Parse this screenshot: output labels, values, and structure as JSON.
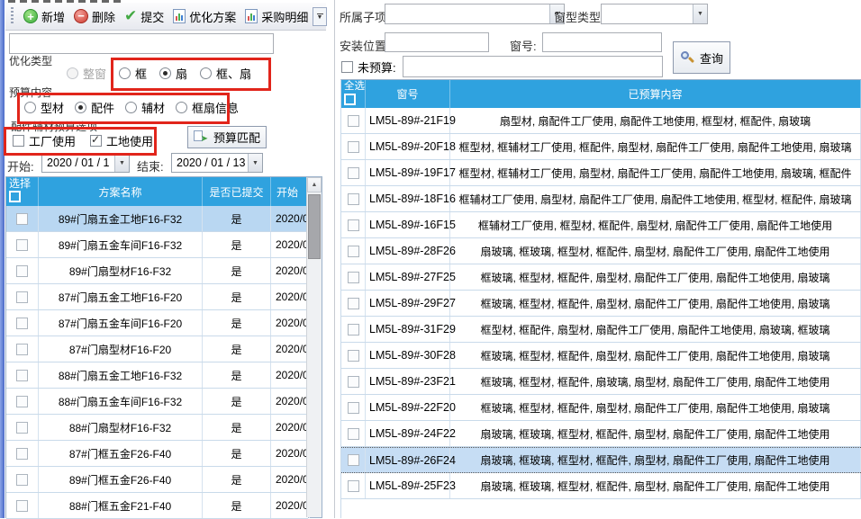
{
  "colors": {
    "header_blue": "#2FA2DF",
    "row_highlight": "#B9D7F2",
    "row_selected": "#C6DDF4",
    "annotation_red": "#E1251B",
    "window_edge_blue": "#4A6AC8"
  },
  "left_panel": {
    "toolbar": {
      "items": [
        {
          "label": "新增",
          "icon": "add-icon"
        },
        {
          "label": "删除",
          "icon": "delete-icon"
        },
        {
          "label": "提交",
          "icon": "check-icon"
        },
        {
          "label": "优化方案",
          "icon": "report-icon"
        },
        {
          "label": "采购明细",
          "icon": "report-icon",
          "has_dropdown": true
        }
      ]
    },
    "filter_input": {
      "value": "",
      "placeholder": ""
    },
    "optimize_type": {
      "label": "优化类型",
      "options": [
        {
          "label": "整窗",
          "state": "disabled"
        },
        {
          "label": "框",
          "state": "off"
        },
        {
          "label": "扇",
          "state": "on"
        },
        {
          "label": "框、扇",
          "state": "off"
        }
      ]
    },
    "budget_content": {
      "label": "预算内容",
      "options": [
        {
          "label": "型材",
          "state": "off"
        },
        {
          "label": "配件",
          "state": "on"
        },
        {
          "label": "辅材",
          "state": "off"
        },
        {
          "label": "框扇信息",
          "state": "off"
        }
      ]
    },
    "accessory_group": {
      "label": "配件辅材预算选项",
      "checkboxes": [
        {
          "label": "工厂使用",
          "state": "off"
        },
        {
          "label": "工地使用",
          "state": "on"
        }
      ]
    },
    "match_button": {
      "label": "预算匹配"
    },
    "dates": {
      "start_label": "开始:",
      "start_value": "2020 / 01 / 1",
      "end_label": "结束:",
      "end_value": "2020 / 01 / 13"
    },
    "table": {
      "headers": {
        "select": "选择",
        "name": "方案名称",
        "submitted": "是否已提交",
        "start": "开始"
      },
      "rows": [
        {
          "name": "89#门扇五金工地F16-F32",
          "submitted": "是",
          "start": "2020/0",
          "highlighted": true
        },
        {
          "name": "89#门扇五金车间F16-F32",
          "submitted": "是",
          "start": "2020/0"
        },
        {
          "name": "89#门扇型材F16-F32",
          "submitted": "是",
          "start": "2020/0"
        },
        {
          "name": "87#门扇五金工地F16-F20",
          "submitted": "是",
          "start": "2020/0"
        },
        {
          "name": "87#门扇五金车间F16-F20",
          "submitted": "是",
          "start": "2020/0"
        },
        {
          "name": "87#门扇型材F16-F20",
          "submitted": "是",
          "start": "2020/0"
        },
        {
          "name": "88#门扇五金工地F16-F32",
          "submitted": "是",
          "start": "2020/0"
        },
        {
          "name": "88#门扇五金车间F16-F32",
          "submitted": "是",
          "start": "2020/0"
        },
        {
          "name": "88#门扇型材F16-F32",
          "submitted": "是",
          "start": "2020/0"
        },
        {
          "name": "87#门框五金F26-F40",
          "submitted": "是",
          "start": "2020/0"
        },
        {
          "name": "89#门框五金F26-F40",
          "submitted": "是",
          "start": "2020/0"
        },
        {
          "name": "88#门框五金F21-F40",
          "submitted": "是",
          "start": "2020/0"
        }
      ]
    }
  },
  "right_panel": {
    "filters": {
      "sub_item_label": "所属子项:",
      "sub_item_value": "",
      "window_type_label": "窗型类型:",
      "window_type_value": "",
      "install_pos_label": "安装位置:",
      "install_pos_value": "",
      "window_no_label": "窗号:",
      "window_no_value": "",
      "no_budget_label": "未预算:",
      "no_budget_state": "off",
      "no_budget_value": ""
    },
    "query_button": {
      "label": "查询",
      "icon": "search-icon"
    },
    "table": {
      "headers": {
        "select_all": "全选",
        "window_no": "窗号",
        "content": "已预算内容"
      },
      "rows": [
        {
          "window_no": "LM5L-89#-21F19",
          "content": "扇型材, 扇配件工厂使用, 扇配件工地使用, 框型材, 框配件, 扇玻璃"
        },
        {
          "window_no": "LM5L-89#-20F18",
          "content": "框型材, 框辅材工厂使用, 框配件, 扇型材, 扇配件工厂使用, 扇配件工地使用, 扇玻璃"
        },
        {
          "window_no": "LM5L-89#-19F17",
          "content": "框型材, 框辅材工厂使用, 扇型材, 扇配件工厂使用, 扇配件工地使用, 扇玻璃, 框配件"
        },
        {
          "window_no": "LM5L-89#-18F16",
          "content": "框辅材工厂使用, 扇型材, 扇配件工厂使用, 扇配件工地使用, 框型材, 框配件, 扇玻璃"
        },
        {
          "window_no": "LM5L-89#-16F15",
          "content": "框辅材工厂使用, 框型材, 框配件, 扇型材, 扇配件工厂使用, 扇配件工地使用"
        },
        {
          "window_no": "LM5L-89#-28F26",
          "content": "扇玻璃, 框玻璃, 框型材, 框配件, 扇型材, 扇配件工厂使用, 扇配件工地使用"
        },
        {
          "window_no": "LM5L-89#-27F25",
          "content": "框玻璃, 框型材, 框配件, 扇型材, 扇配件工厂使用, 扇配件工地使用, 扇玻璃"
        },
        {
          "window_no": "LM5L-89#-29F27",
          "content": "框玻璃, 框型材, 框配件, 扇型材, 扇配件工厂使用, 扇配件工地使用, 扇玻璃"
        },
        {
          "window_no": "LM5L-89#-31F29",
          "content": "框型材, 框配件, 扇型材, 扇配件工厂使用, 扇配件工地使用, 扇玻璃, 框玻璃"
        },
        {
          "window_no": "LM5L-89#-30F28",
          "content": "框玻璃, 框型材, 框配件, 扇型材, 扇配件工厂使用, 扇配件工地使用, 扇玻璃"
        },
        {
          "window_no": "LM5L-89#-23F21",
          "content": "框玻璃, 框型材, 框配件, 扇玻璃, 扇型材, 扇配件工厂使用, 扇配件工地使用"
        },
        {
          "window_no": "LM5L-89#-22F20",
          "content": "框玻璃, 框型材, 框配件, 扇型材, 扇配件工厂使用, 扇配件工地使用, 扇玻璃"
        },
        {
          "window_no": "LM5L-89#-24F22",
          "content": "扇玻璃, 框玻璃, 框型材, 框配件, 扇型材, 扇配件工厂使用, 扇配件工地使用"
        },
        {
          "window_no": "LM5L-89#-26F24",
          "content": "扇玻璃, 框玻璃, 框型材, 框配件, 扇型材, 扇配件工厂使用, 扇配件工地使用",
          "selected": true
        },
        {
          "window_no": "LM5L-89#-25F23",
          "content": "扇玻璃, 框玻璃, 框型材, 框配件, 扇型材, 扇配件工厂使用, 扇配件工地使用"
        }
      ]
    }
  }
}
